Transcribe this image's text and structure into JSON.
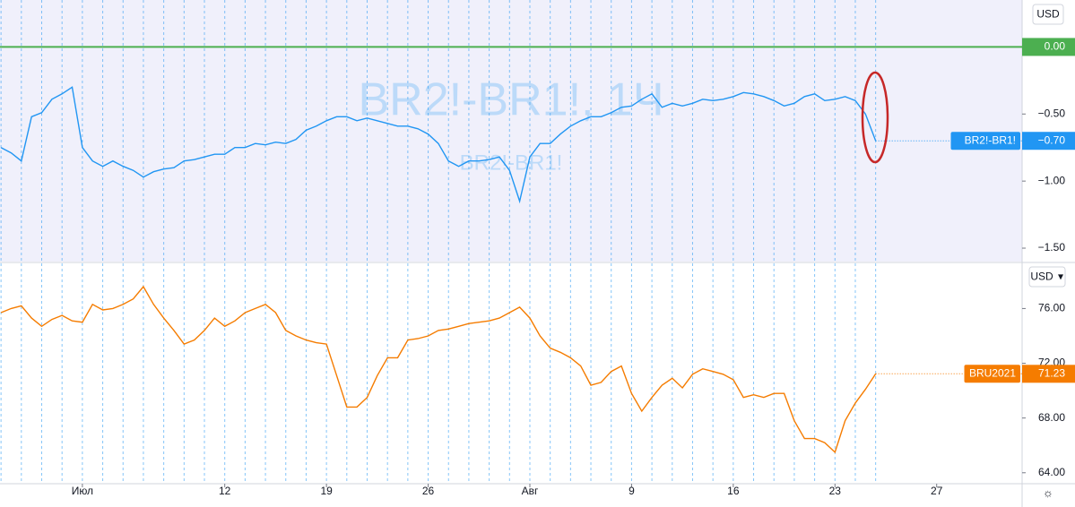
{
  "chart_data": [
    {
      "type": "line",
      "watermark": "BR2!-BR1!, 1Ч",
      "watermark_sub": "BR2!-BR1!",
      "unit": "USD",
      "x": [
        -4,
        -3.5,
        -3,
        -2.5,
        -2,
        -1.5,
        -1,
        -0.5,
        0,
        0.5,
        1,
        1.5,
        2,
        2.5,
        3,
        3.5,
        4,
        4.5,
        5,
        5.5,
        6,
        6.5,
        7,
        7.5,
        8,
        8.5,
        9,
        9.5,
        10,
        10.5,
        11,
        11.5,
        12,
        12.5,
        13,
        13.5,
        14,
        14.5,
        15,
        15.5,
        16,
        16.5,
        17,
        17.5,
        18,
        18.5,
        19,
        19.5,
        20,
        20.5,
        21,
        21.5,
        22,
        22.5,
        23,
        23.5,
        24,
        24.5,
        25,
        25.5,
        26,
        26.5,
        27,
        27.5,
        28,
        28.5,
        29,
        29.5,
        30,
        30.5,
        31,
        31.5,
        32,
        32.5,
        33,
        33.5,
        34,
        34.5,
        35,
        35.5,
        36,
        36.5,
        37,
        37.5,
        38,
        38.5,
        39
      ],
      "xlim": [
        -4.05,
        46.2
      ],
      "ylim": [
        -1.6,
        0.35
      ],
      "yticks": [
        {
          "value": -0.5,
          "label": "−0.50"
        },
        {
          "value": -1,
          "label": "−1.00"
        },
        {
          "value": -1.5,
          "label": "−1.50"
        }
      ],
      "hline": {
        "value": 0,
        "label": "0.00",
        "color": "#4caf50"
      },
      "series": [
        {
          "name": "BR2!-BR1!",
          "color": "#2196f3",
          "last_label": "−0.70",
          "values": [
            -0.75,
            -0.79,
            -0.85,
            -0.52,
            -0.49,
            -0.39,
            -0.35,
            -0.3,
            -0.75,
            -0.85,
            -0.89,
            -0.85,
            -0.89,
            -0.92,
            -0.97,
            -0.93,
            -0.91,
            -0.9,
            -0.85,
            -0.84,
            -0.82,
            -0.8,
            -0.8,
            -0.75,
            -0.75,
            -0.72,
            -0.73,
            -0.71,
            -0.72,
            -0.69,
            -0.62,
            -0.59,
            -0.55,
            -0.52,
            -0.52,
            -0.55,
            -0.53,
            -0.55,
            -0.57,
            -0.59,
            -0.59,
            -0.61,
            -0.65,
            -0.72,
            -0.85,
            -0.89,
            -0.85,
            -0.85,
            -0.84,
            -0.82,
            -0.92,
            -1.15,
            -0.82,
            -0.72,
            -0.72,
            -0.65,
            -0.59,
            -0.55,
            -0.52,
            -0.52,
            -0.49,
            -0.45,
            -0.44,
            -0.39,
            -0.35,
            -0.45,
            -0.42,
            -0.44,
            -0.42,
            -0.39,
            -0.4,
            -0.39,
            -0.37,
            -0.34,
            -0.35,
            -0.37,
            -0.4,
            -0.44,
            -0.42,
            -0.37,
            -0.35,
            -0.4,
            -0.39,
            -0.37,
            -0.4,
            -0.5,
            -0.7
          ]
        }
      ]
    },
    {
      "type": "line",
      "unit": "USD",
      "x": [
        -4,
        -3.5,
        -3,
        -2.5,
        -2,
        -1.5,
        -1,
        -0.5,
        0,
        0.5,
        1,
        1.5,
        2,
        2.5,
        3,
        3.5,
        4,
        4.5,
        5,
        5.5,
        6,
        6.5,
        7,
        7.5,
        8,
        8.5,
        9,
        9.5,
        10,
        10.5,
        11,
        11.5,
        12,
        12.5,
        13,
        13.5,
        14,
        14.5,
        15,
        15.5,
        16,
        16.5,
        17,
        17.5,
        18,
        18.5,
        19,
        19.5,
        20,
        20.5,
        21,
        21.5,
        22,
        22.5,
        23,
        23.5,
        24,
        24.5,
        25,
        25.5,
        26,
        26.5,
        27,
        27.5,
        28,
        28.5,
        29,
        29.5,
        30,
        30.5,
        31,
        31.5,
        32,
        32.5,
        33,
        33.5,
        34,
        34.5,
        35,
        35.5,
        36,
        36.5,
        37,
        37.5,
        38,
        38.5,
        39
      ],
      "xlim": [
        -4.05,
        46.2
      ],
      "xticks": [
        {
          "value": 0,
          "label": "Июл"
        },
        {
          "value": 7,
          "label": "12"
        },
        {
          "value": 12,
          "label": "19"
        },
        {
          "value": 17,
          "label": "26"
        },
        {
          "value": 22,
          "label": "Авг"
        },
        {
          "value": 27,
          "label": "9"
        },
        {
          "value": 32,
          "label": "16"
        },
        {
          "value": 37,
          "label": "23"
        },
        {
          "value": 42,
          "label": "27"
        }
      ],
      "ylim": [
        63.2,
        79.3
      ],
      "yticks": [
        {
          "value": 76,
          "label": "76.00"
        },
        {
          "value": 72,
          "label": "72.00"
        },
        {
          "value": 68,
          "label": "68.00"
        },
        {
          "value": 64,
          "label": "64.00"
        }
      ],
      "series": [
        {
          "name": "BRU2021",
          "color": "#f57c00",
          "values": [
            75.7,
            76.0,
            76.2,
            75.3,
            74.7,
            75.2,
            75.5,
            75.1,
            75.0,
            76.3,
            75.9,
            76.0,
            76.3,
            76.7,
            77.6,
            76.3,
            75.3,
            74.4,
            73.4,
            73.7,
            74.4,
            75.3,
            74.7,
            75.1,
            75.7,
            76.0,
            76.3,
            75.7,
            74.4,
            74.0,
            73.7,
            73.5,
            73.4,
            71.1,
            68.8,
            68.8,
            69.5,
            71.1,
            72.4,
            72.4,
            73.7,
            73.8,
            74.0,
            74.4,
            74.5,
            74.7,
            74.9,
            75.0,
            75.1,
            75.3,
            75.7,
            76.1,
            75.3,
            74.0,
            73.1,
            72.8,
            72.4,
            71.8,
            70.4,
            70.6,
            71.4,
            71.8,
            69.8,
            68.5,
            69.5,
            70.4,
            70.9,
            70.2,
            71.2,
            71.6,
            71.4,
            71.2,
            70.8,
            69.5,
            69.7,
            69.5,
            69.8,
            69.8,
            67.8,
            66.5,
            66.5,
            66.2,
            65.5,
            67.8,
            69.1,
            70.1,
            71.23
          ]
        }
      ]
    }
  ]
}
